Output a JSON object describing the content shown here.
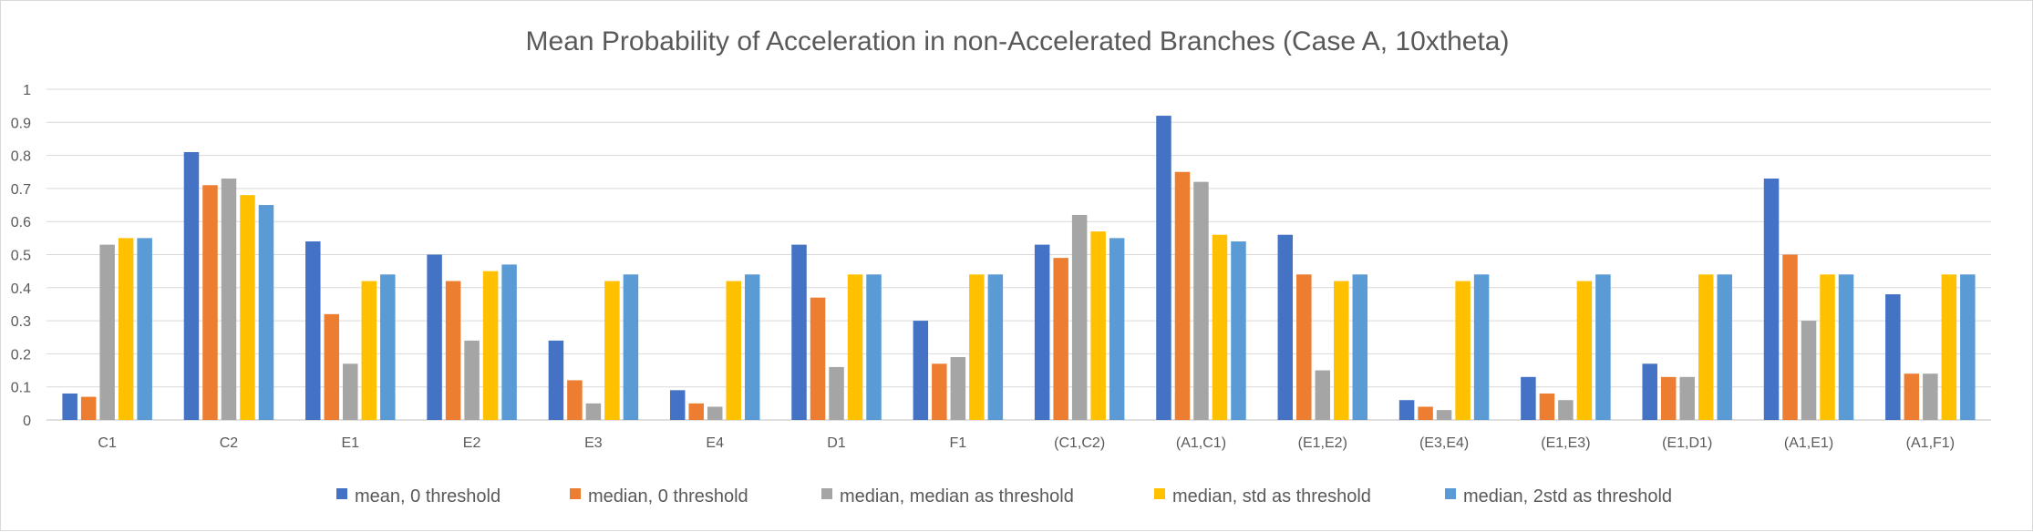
{
  "chart_data": {
    "type": "bar",
    "title": "Mean Probability of Acceleration in non-Accelerated Branches (Case A, 10xtheta)",
    "xlabel": "",
    "ylabel": "",
    "ylim": [
      0,
      1
    ],
    "yticks": [
      "0",
      "0.1",
      "0.2",
      "0.3",
      "0.4",
      "0.5",
      "0.6",
      "0.7",
      "0.8",
      "0.9",
      "1"
    ],
    "grid": true,
    "legend_position": "bottom",
    "categories": [
      "C1",
      "C2",
      "E1",
      "E2",
      "E3",
      "E4",
      "D1",
      "F1",
      "(C1,C2)",
      "(A1,C1)",
      "(E1,E2)",
      "(E3,E4)",
      "(E1,E3)",
      "(E1,D1)",
      "(A1,E1)",
      "(A1,F1)"
    ],
    "series": [
      {
        "name": "mean, 0 threshold",
        "color": "#4472c4",
        "values": [
          0.08,
          0.81,
          0.54,
          0.5,
          0.24,
          0.09,
          0.53,
          0.3,
          0.53,
          0.92,
          0.56,
          0.06,
          0.13,
          0.17,
          0.73,
          0.38
        ]
      },
      {
        "name": "median, 0 threshold",
        "color": "#ed7d31",
        "values": [
          0.07,
          0.71,
          0.32,
          0.42,
          0.12,
          0.05,
          0.37,
          0.17,
          0.49,
          0.75,
          0.44,
          0.04,
          0.08,
          0.13,
          0.5,
          0.14
        ]
      },
      {
        "name": "median, median as threshold",
        "color": "#a5a5a5",
        "values": [
          0.53,
          0.73,
          0.17,
          0.24,
          0.05,
          0.04,
          0.16,
          0.19,
          0.62,
          0.72,
          0.15,
          0.03,
          0.06,
          0.13,
          0.3,
          0.14
        ]
      },
      {
        "name": "median, std as threshold",
        "color": "#ffc000",
        "values": [
          0.55,
          0.68,
          0.42,
          0.45,
          0.42,
          0.42,
          0.44,
          0.44,
          0.57,
          0.56,
          0.42,
          0.42,
          0.42,
          0.44,
          0.44,
          0.44
        ]
      },
      {
        "name": "median, 2std as threshold",
        "color": "#5b9bd5",
        "values": [
          0.55,
          0.65,
          0.44,
          0.47,
          0.44,
          0.44,
          0.44,
          0.44,
          0.55,
          0.54,
          0.44,
          0.44,
          0.44,
          0.44,
          0.44,
          0.44
        ]
      }
    ]
  }
}
